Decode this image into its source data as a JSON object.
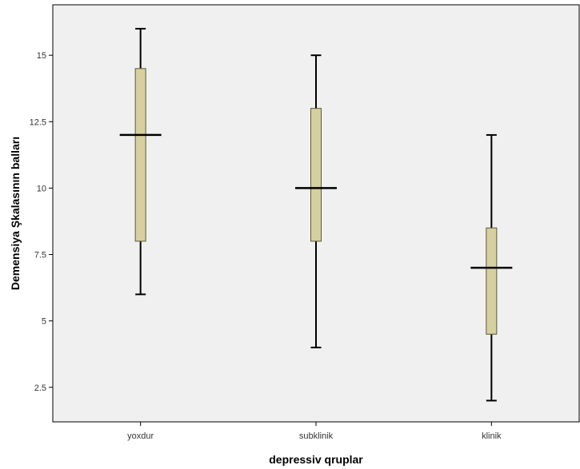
{
  "chart_data": {
    "type": "boxplot",
    "title": "",
    "xlabel": "depressiv qruplar",
    "ylabel": "Demensiya Şkalasının balları",
    "ylim": [
      1.2,
      16.9
    ],
    "yticks": [
      2.5,
      5,
      7.5,
      10,
      12.5,
      15
    ],
    "ytick_labels": [
      "2.5",
      "5",
      "7.5",
      "10",
      "12.5",
      "15"
    ],
    "categories": [
      "yoxdur",
      "subklinik",
      "klinik"
    ],
    "boxes": [
      {
        "category": "yoxdur",
        "whisker_low": 6,
        "q1": 8,
        "median": 12,
        "q3": 14.5,
        "whisker_high": 16
      },
      {
        "category": "subklinik",
        "whisker_low": 4,
        "q1": 8,
        "median": 10,
        "q3": 13,
        "whisker_high": 15
      },
      {
        "category": "klinik",
        "whisker_low": 2,
        "q1": 4.5,
        "median": 7,
        "q3": 8.5,
        "whisker_high": 12
      }
    ],
    "grid": false,
    "legend": "none",
    "colors": {
      "plot_background": "#f0f0f0",
      "box_fill": "#d6cf9f",
      "box_stroke": "#5a5a3c",
      "line": "#000000"
    }
  }
}
